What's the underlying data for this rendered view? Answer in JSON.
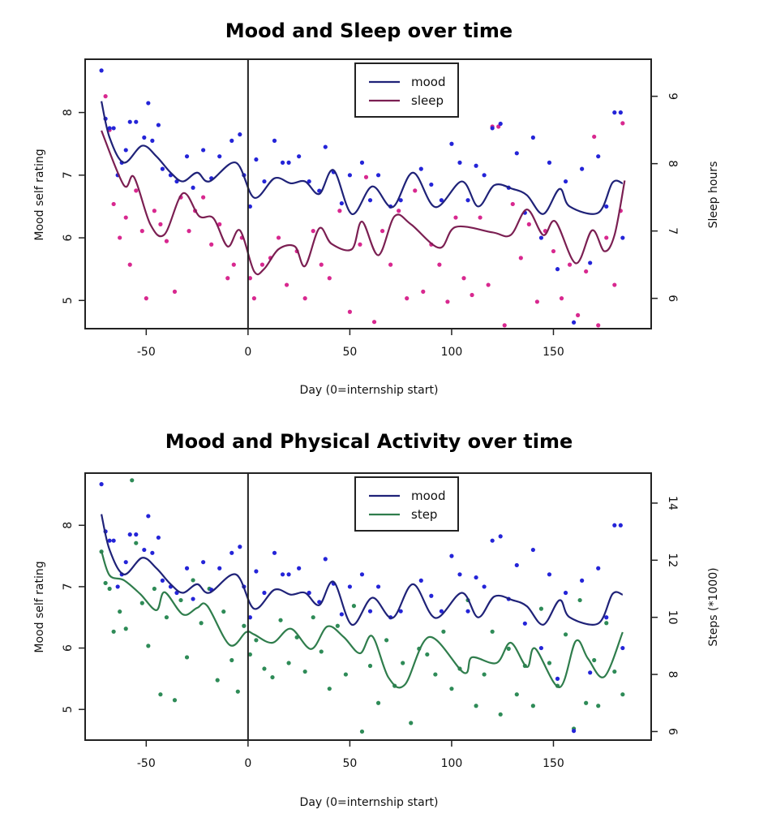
{
  "colors": {
    "mood_points": "#2424d8",
    "mood_line": "#1f2278",
    "sleep_points": "#d8288f",
    "sleep_line": "#7b1f52",
    "step_points": "#2e8b57",
    "step_line": "#2f7d4c",
    "axes": "#222222"
  },
  "mood_points": [
    [
      -72,
      8.67
    ],
    [
      -70,
      7.9
    ],
    [
      -68,
      7.75
    ],
    [
      -66,
      7.75
    ],
    [
      -64,
      7.0
    ],
    [
      -62,
      7.2
    ],
    [
      -60,
      7.4
    ],
    [
      -58,
      7.85
    ],
    [
      -55,
      7.85
    ],
    [
      -51,
      7.6
    ],
    [
      -49,
      8.15
    ],
    [
      -47,
      7.55
    ],
    [
      -44,
      7.8
    ],
    [
      -42,
      7.1
    ],
    [
      -38,
      7.0
    ],
    [
      -35,
      6.9
    ],
    [
      -30,
      7.3
    ],
    [
      -27,
      6.8
    ],
    [
      -22,
      7.4
    ],
    [
      -18,
      6.95
    ],
    [
      -14,
      7.3
    ],
    [
      -8,
      7.55
    ],
    [
      -4,
      7.65
    ],
    [
      -2,
      7.0
    ],
    [
      1,
      6.5
    ],
    [
      4,
      7.25
    ],
    [
      8,
      6.9
    ],
    [
      13,
      7.55
    ],
    [
      17,
      7.2
    ],
    [
      20,
      7.2
    ],
    [
      25,
      7.3
    ],
    [
      30,
      6.9
    ],
    [
      35,
      6.75
    ],
    [
      38,
      7.45
    ],
    [
      42,
      7.05
    ],
    [
      46,
      6.55
    ],
    [
      50,
      7.0
    ],
    [
      56,
      7.2
    ],
    [
      60,
      6.6
    ],
    [
      64,
      7.0
    ],
    [
      70,
      6.5
    ],
    [
      75,
      6.6
    ],
    [
      80,
      7.95
    ],
    [
      85,
      7.1
    ],
    [
      90,
      6.85
    ],
    [
      95,
      6.6
    ],
    [
      100,
      7.5
    ],
    [
      104,
      7.2
    ],
    [
      108,
      6.6
    ],
    [
      112,
      7.15
    ],
    [
      116,
      7.0
    ],
    [
      120,
      7.75
    ],
    [
      124,
      7.82
    ],
    [
      128,
      6.8
    ],
    [
      132,
      7.35
    ],
    [
      136,
      6.4
    ],
    [
      140,
      7.6
    ],
    [
      144,
      6.0
    ],
    [
      148,
      7.2
    ],
    [
      152,
      5.5
    ],
    [
      156,
      6.9
    ],
    [
      160,
      4.65
    ],
    [
      164,
      7.1
    ],
    [
      168,
      5.6
    ],
    [
      172,
      7.3
    ],
    [
      176,
      6.5
    ],
    [
      180,
      8.0
    ],
    [
      183,
      8.0
    ],
    [
      184,
      6.0
    ]
  ],
  "mood_smooth": [
    [
      -72,
      8.18
    ],
    [
      -68,
      7.6
    ],
    [
      -61,
      7.2
    ],
    [
      -52,
      7.47
    ],
    [
      -45,
      7.3
    ],
    [
      -38,
      7.04
    ],
    [
      -32,
      6.9
    ],
    [
      -25,
      7.04
    ],
    [
      -19,
      6.9
    ],
    [
      -6,
      7.2
    ],
    [
      3,
      6.64
    ],
    [
      13,
      6.95
    ],
    [
      21,
      6.87
    ],
    [
      28,
      6.9
    ],
    [
      35,
      6.7
    ],
    [
      42,
      7.08
    ],
    [
      51,
      6.38
    ],
    [
      61,
      6.82
    ],
    [
      71,
      6.49
    ],
    [
      81,
      7.04
    ],
    [
      92,
      6.49
    ],
    [
      105,
      6.9
    ],
    [
      113,
      6.5
    ],
    [
      121,
      6.84
    ],
    [
      130,
      6.78
    ],
    [
      137,
      6.68
    ],
    [
      145,
      6.38
    ],
    [
      153,
      6.78
    ],
    [
      158,
      6.5
    ],
    [
      172,
      6.4
    ],
    [
      179,
      6.88
    ],
    [
      184,
      6.87
    ]
  ],
  "charts": [
    {
      "type": "scatter+line",
      "title": "Mood and Sleep over time",
      "xlabel": "Day (0=internship start)",
      "ylabel": "Mood self rating",
      "y2label": "Sleep hours",
      "xlim": [
        -80,
        198
      ],
      "ylim": [
        4.55,
        8.85
      ],
      "y2lim": [
        5.55,
        9.55
      ],
      "xticks": [
        "-50",
        "0",
        "50",
        "100",
        "150"
      ],
      "yticks": [
        "5",
        "6",
        "7",
        "8"
      ],
      "y2ticks": [
        "6",
        "7",
        "8",
        "9"
      ],
      "vline_x": 0,
      "legend": {
        "position": "top-center",
        "items": [
          "mood",
          "sleep"
        ]
      },
      "second_series": {
        "name": "sleep",
        "points": [
          [
            -70,
            9.0
          ],
          [
            -68,
            8.5
          ],
          [
            -66,
            7.4
          ],
          [
            -63,
            6.9
          ],
          [
            -60,
            7.2
          ],
          [
            -58,
            6.5
          ],
          [
            -55,
            7.6
          ],
          [
            -52,
            7.0
          ],
          [
            -50,
            6.0
          ],
          [
            -46,
            7.3
          ],
          [
            -43,
            7.1
          ],
          [
            -40,
            6.85
          ],
          [
            -36,
            6.1
          ],
          [
            -33,
            7.5
          ],
          [
            -29,
            7.0
          ],
          [
            -26,
            7.3
          ],
          [
            -22,
            7.5
          ],
          [
            -18,
            6.8
          ],
          [
            -14,
            7.1
          ],
          [
            -10,
            6.3
          ],
          [
            -7,
            6.5
          ],
          [
            -3,
            6.9
          ],
          [
            1,
            6.3
          ],
          [
            3,
            6.0
          ],
          [
            7,
            6.5
          ],
          [
            11,
            6.6
          ],
          [
            15,
            6.9
          ],
          [
            19,
            6.2
          ],
          [
            24,
            6.7
          ],
          [
            28,
            6.0
          ],
          [
            32,
            7.0
          ],
          [
            36,
            6.5
          ],
          [
            40,
            6.3
          ],
          [
            45,
            7.3
          ],
          [
            50,
            5.8
          ],
          [
            55,
            6.8
          ],
          [
            58,
            7.8
          ],
          [
            62,
            5.65
          ],
          [
            66,
            7.0
          ],
          [
            70,
            6.5
          ],
          [
            74,
            7.3
          ],
          [
            78,
            6.0
          ],
          [
            82,
            7.6
          ],
          [
            86,
            6.1
          ],
          [
            90,
            6.8
          ],
          [
            94,
            6.5
          ],
          [
            98,
            5.95
          ],
          [
            102,
            7.2
          ],
          [
            106,
            6.3
          ],
          [
            110,
            6.05
          ],
          [
            114,
            7.2
          ],
          [
            118,
            6.2
          ],
          [
            120,
            8.55
          ],
          [
            123,
            8.55
          ],
          [
            126,
            5.6
          ],
          [
            130,
            7.4
          ],
          [
            134,
            6.6
          ],
          [
            138,
            7.1
          ],
          [
            142,
            5.95
          ],
          [
            146,
            7.0
          ],
          [
            150,
            6.7
          ],
          [
            154,
            6.0
          ],
          [
            158,
            6.5
          ],
          [
            162,
            5.75
          ],
          [
            166,
            6.4
          ],
          [
            170,
            8.4
          ],
          [
            172,
            5.6
          ],
          [
            176,
            6.9
          ],
          [
            180,
            6.2
          ],
          [
            183,
            7.3
          ],
          [
            184,
            8.6
          ]
        ],
        "smooth": [
          [
            -72,
            8.49
          ],
          [
            -61,
            7.68
          ],
          [
            -56,
            7.8
          ],
          [
            -48,
            7.1
          ],
          [
            -41,
            6.95
          ],
          [
            -32,
            7.56
          ],
          [
            -24,
            7.22
          ],
          [
            -17,
            7.19
          ],
          [
            -10,
            6.77
          ],
          [
            -4,
            7.01
          ],
          [
            3,
            6.4
          ],
          [
            8,
            6.44
          ],
          [
            15,
            6.73
          ],
          [
            23,
            6.77
          ],
          [
            28,
            6.48
          ],
          [
            35,
            7.04
          ],
          [
            41,
            6.81
          ],
          [
            51,
            6.73
          ],
          [
            56,
            7.14
          ],
          [
            64,
            6.64
          ],
          [
            72,
            7.22
          ],
          [
            80,
            7.1
          ],
          [
            94,
            6.75
          ],
          [
            102,
            7.06
          ],
          [
            120,
            6.98
          ],
          [
            129,
            6.94
          ],
          [
            137,
            7.32
          ],
          [
            145,
            6.94
          ],
          [
            151,
            7.14
          ],
          [
            161,
            6.52
          ],
          [
            169,
            7.01
          ],
          [
            175,
            6.7
          ],
          [
            180,
            6.94
          ],
          [
            185,
            7.75
          ]
        ]
      }
    },
    {
      "type": "scatter+line",
      "title": "Mood and Physical Activity over time",
      "xlabel": "Day (0=internship start)",
      "ylabel": "Mood self rating",
      "y2label": "Steps (*1000)",
      "xlim": [
        -80,
        198
      ],
      "ylim": [
        4.5,
        8.85
      ],
      "y2lim": [
        5.7,
        15.05
      ],
      "xticks": [
        "-50",
        "0",
        "50",
        "100",
        "150"
      ],
      "yticks": [
        "5",
        "6",
        "7",
        "8"
      ],
      "y2ticks": [
        "6",
        "8",
        "10",
        "12",
        "14"
      ],
      "vline_x": 0,
      "legend": {
        "position": "top-center",
        "items": [
          "mood",
          "step"
        ]
      },
      "second_series": {
        "name": "step",
        "points": [
          [
            -72,
            12.3
          ],
          [
            -70,
            11.2
          ],
          [
            -68,
            11.0
          ],
          [
            -66,
            9.5
          ],
          [
            -63,
            10.2
          ],
          [
            -60,
            9.6
          ],
          [
            -57,
            14.8
          ],
          [
            -55,
            12.6
          ],
          [
            -52,
            10.5
          ],
          [
            -49,
            9.0
          ],
          [
            -46,
            11.0
          ],
          [
            -43,
            7.3
          ],
          [
            -40,
            10.0
          ],
          [
            -36,
            7.1
          ],
          [
            -33,
            10.6
          ],
          [
            -30,
            8.6
          ],
          [
            -27,
            11.3
          ],
          [
            -23,
            9.8
          ],
          [
            -19,
            11.0
          ],
          [
            -15,
            7.8
          ],
          [
            -12,
            10.2
          ],
          [
            -8,
            8.5
          ],
          [
            -5,
            7.4
          ],
          [
            -2,
            9.7
          ],
          [
            1,
            8.7
          ],
          [
            4,
            9.2
          ],
          [
            8,
            8.2
          ],
          [
            12,
            7.9
          ],
          [
            16,
            9.9
          ],
          [
            20,
            8.4
          ],
          [
            24,
            9.3
          ],
          [
            28,
            8.1
          ],
          [
            32,
            10.0
          ],
          [
            36,
            8.8
          ],
          [
            40,
            7.5
          ],
          [
            44,
            9.7
          ],
          [
            48,
            8.0
          ],
          [
            52,
            10.4
          ],
          [
            56,
            6.0
          ],
          [
            60,
            8.3
          ],
          [
            64,
            7.0
          ],
          [
            68,
            9.2
          ],
          [
            72,
            7.6
          ],
          [
            76,
            8.4
          ],
          [
            80,
            6.3
          ],
          [
            84,
            8.9
          ],
          [
            88,
            8.7
          ],
          [
            92,
            8.0
          ],
          [
            96,
            9.5
          ],
          [
            100,
            7.5
          ],
          [
            104,
            8.2
          ],
          [
            108,
            10.6
          ],
          [
            112,
            6.9
          ],
          [
            116,
            8.0
          ],
          [
            120,
            9.5
          ],
          [
            124,
            6.6
          ],
          [
            128,
            8.9
          ],
          [
            132,
            7.3
          ],
          [
            136,
            8.3
          ],
          [
            140,
            6.9
          ],
          [
            144,
            10.3
          ],
          [
            148,
            8.4
          ],
          [
            152,
            7.6
          ],
          [
            156,
            9.4
          ],
          [
            160,
            6.1
          ],
          [
            163,
            10.6
          ],
          [
            166,
            7.0
          ],
          [
            170,
            8.5
          ],
          [
            172,
            6.9
          ],
          [
            176,
            9.8
          ],
          [
            180,
            8.1
          ],
          [
            184,
            7.3
          ]
        ],
        "smooth": [
          [
            -72,
            12.32
          ],
          [
            -68,
            11.47
          ],
          [
            -61,
            11.3
          ],
          [
            -53,
            10.82
          ],
          [
            -45,
            10.25
          ],
          [
            -41,
            10.88
          ],
          [
            -32,
            10.1
          ],
          [
            -25,
            10.33
          ],
          [
            -20,
            10.4
          ],
          [
            -9,
            9.03
          ],
          [
            -1,
            9.48
          ],
          [
            3,
            9.4
          ],
          [
            12,
            9.11
          ],
          [
            21,
            9.6
          ],
          [
            31,
            8.89
          ],
          [
            39,
            9.68
          ],
          [
            47,
            9.31
          ],
          [
            55,
            8.74
          ],
          [
            61,
            9.34
          ],
          [
            69,
            7.89
          ],
          [
            77,
            7.64
          ],
          [
            89,
            9.31
          ],
          [
            106,
            8.06
          ],
          [
            110,
            8.6
          ],
          [
            122,
            8.4
          ],
          [
            129,
            9.11
          ],
          [
            137,
            8.26
          ],
          [
            141,
            8.91
          ],
          [
            153,
            7.55
          ],
          [
            161,
            9.17
          ],
          [
            167,
            8.55
          ],
          [
            175,
            7.92
          ],
          [
            184,
            9.48
          ]
        ]
      }
    }
  ]
}
